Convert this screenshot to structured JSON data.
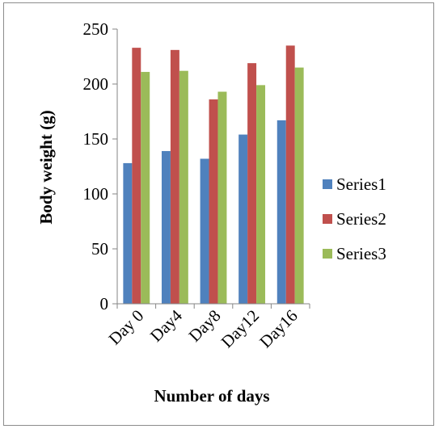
{
  "chart_data": {
    "type": "bar",
    "title": "",
    "xlabel": "Number of days",
    "ylabel": "Body weight (g)",
    "categories": [
      "Day 0",
      "Day4",
      "Day8",
      "Day12",
      "Day16"
    ],
    "ylim": [
      0,
      250
    ],
    "yticks": [
      0,
      50,
      100,
      150,
      200,
      250
    ],
    "grid": false,
    "legend_position": "right",
    "series": [
      {
        "name": "Series1",
        "color": "#4f81bd",
        "values": [
          128,
          139,
          132,
          154,
          167
        ]
      },
      {
        "name": "Series2",
        "color": "#c0504d",
        "values": [
          233,
          231,
          186,
          219,
          235
        ]
      },
      {
        "name": "Series3",
        "color": "#9bbb59",
        "values": [
          211,
          212,
          193,
          199,
          215
        ]
      }
    ]
  }
}
